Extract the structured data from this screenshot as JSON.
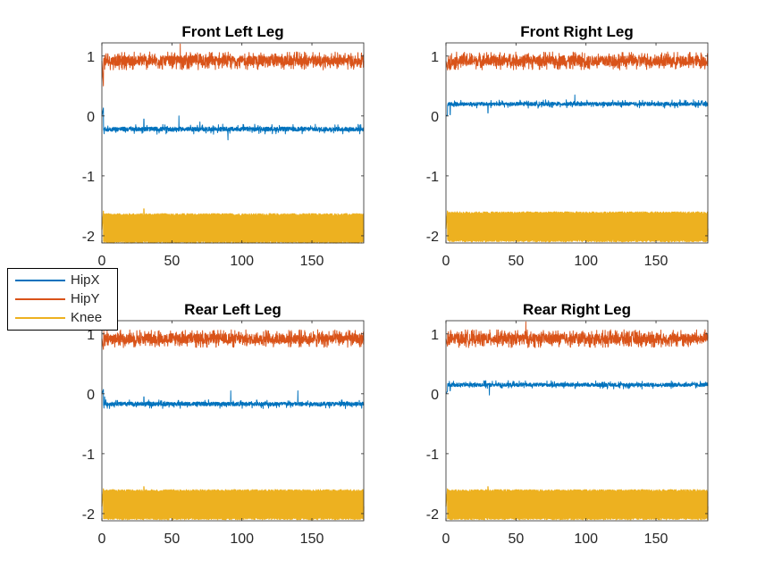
{
  "colors": {
    "HipX": "#0072BD",
    "HipY": "#D95319",
    "Knee": "#EDB120"
  },
  "legend": {
    "entries": [
      "HipX",
      "HipY",
      "Knee"
    ],
    "placement": "left-middle"
  },
  "chart_data": [
    {
      "type": "line",
      "title": "Front Left Leg",
      "xlim": [
        0,
        187
      ],
      "ylim": [
        -2.12,
        1.22
      ],
      "xticks": [
        "0",
        "50",
        "100",
        "150"
      ],
      "yticks": [
        "1",
        "0",
        "-1",
        "-2"
      ],
      "series": [
        {
          "name": "HipX",
          "approx_level": -0.22,
          "band": [
            -0.28,
            -0.16
          ],
          "x": [
            0,
            1,
            2,
            3,
            5,
            30,
            55,
            70,
            90,
            120,
            150,
            187
          ],
          "y": [
            0.0,
            0.15,
            -0.2,
            -0.22,
            -0.22,
            -0.05,
            0.0,
            -0.1,
            -0.4,
            -0.2,
            -0.2,
            -0.24
          ]
        },
        {
          "name": "HipY",
          "approx_level": 0.92,
          "band": [
            0.78,
            1.08
          ],
          "x": [
            0,
            1,
            2,
            5,
            56,
            100,
            187
          ],
          "y": [
            0.92,
            0.45,
            0.78,
            0.92,
            1.2,
            0.92,
            0.92
          ]
        },
        {
          "name": "Knee",
          "approx_level": -1.9,
          "band": [
            -2.1,
            -1.65
          ],
          "x": [
            0,
            1,
            2,
            30,
            187
          ],
          "y": [
            -1.9,
            -1.55,
            -2.05,
            -1.55,
            -1.9
          ]
        }
      ]
    },
    {
      "type": "line",
      "title": "Front Right Leg",
      "xlim": [
        0,
        187
      ],
      "ylim": [
        -2.12,
        1.22
      ],
      "xticks": [
        "0",
        "50",
        "100",
        "150"
      ],
      "yticks": [
        "1",
        "0",
        "-1",
        "-2"
      ],
      "series": [
        {
          "name": "HipX",
          "approx_level": 0.2,
          "band": [
            0.15,
            0.25
          ],
          "x": [
            0,
            3,
            5,
            30,
            92,
            187
          ],
          "y": [
            0.0,
            0.02,
            0.2,
            0.05,
            0.35,
            0.2
          ]
        },
        {
          "name": "HipY",
          "approx_level": 0.92,
          "band": [
            0.78,
            1.08
          ],
          "x": [
            0,
            1,
            2,
            5,
            100,
            187
          ],
          "y": [
            0.92,
            0.75,
            0.8,
            0.92,
            0.92,
            0.92
          ]
        },
        {
          "name": "Knee",
          "approx_level": -1.88,
          "band": [
            -2.08,
            -1.62
          ],
          "x": [
            0,
            1,
            2,
            30,
            187
          ],
          "y": [
            -1.88,
            -1.55,
            -2.05,
            -2.05,
            -1.88
          ]
        }
      ]
    },
    {
      "type": "line",
      "title": "Rear Left Leg",
      "xlim": [
        0,
        187
      ],
      "ylim": [
        -2.12,
        1.22
      ],
      "xticks": [
        "0",
        "50",
        "100",
        "150"
      ],
      "yticks": [
        "1",
        "0",
        "-1",
        "-2"
      ],
      "series": [
        {
          "name": "HipX",
          "approx_level": -0.17,
          "band": [
            -0.23,
            -0.12
          ],
          "x": [
            0,
            1,
            2,
            3,
            5,
            30,
            92,
            140,
            187
          ],
          "y": [
            0.0,
            0.08,
            -0.05,
            -0.15,
            -0.17,
            -0.05,
            0.05,
            0.05,
            -0.17
          ]
        },
        {
          "name": "HipY",
          "approx_level": 0.92,
          "band": [
            0.78,
            1.08
          ],
          "x": [
            0,
            1,
            2,
            5,
            100,
            187
          ],
          "y": [
            0.92,
            0.72,
            0.8,
            0.92,
            0.92,
            0.92
          ]
        },
        {
          "name": "Knee",
          "approx_level": -1.88,
          "band": [
            -2.08,
            -1.62
          ],
          "x": [
            0,
            1,
            2,
            30,
            187
          ],
          "y": [
            -1.88,
            -1.55,
            -2.05,
            -1.55,
            -1.88
          ]
        }
      ]
    },
    {
      "type": "line",
      "title": "Rear Right Leg",
      "xlim": [
        0,
        187
      ],
      "ylim": [
        -2.12,
        1.22
      ],
      "xticks": [
        "0",
        "50",
        "100",
        "150"
      ],
      "yticks": [
        "1",
        "0",
        "-1",
        "-2"
      ],
      "series": [
        {
          "name": "HipX",
          "approx_level": 0.15,
          "band": [
            0.1,
            0.2
          ],
          "x": [
            0,
            3,
            5,
            31,
            140,
            187
          ],
          "y": [
            0.0,
            0.05,
            0.15,
            -0.02,
            0.08,
            0.13
          ]
        },
        {
          "name": "HipY",
          "approx_level": 0.92,
          "band": [
            0.78,
            1.08
          ],
          "x": [
            0,
            1,
            2,
            5,
            57,
            100,
            187
          ],
          "y": [
            0.92,
            0.78,
            0.82,
            0.92,
            1.2,
            0.92,
            0.92
          ]
        },
        {
          "name": "Knee",
          "approx_level": -1.88,
          "band": [
            -2.08,
            -1.62
          ],
          "x": [
            0,
            1,
            2,
            30,
            187
          ],
          "y": [
            -1.88,
            -1.55,
            -2.05,
            -1.55,
            -1.88
          ]
        }
      ]
    }
  ]
}
